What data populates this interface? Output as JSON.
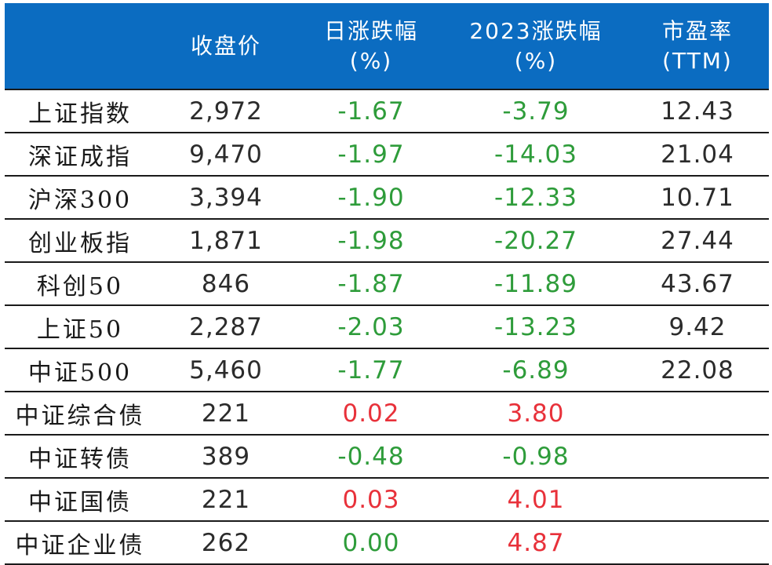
{
  "table": {
    "headers": [
      {
        "line1": "",
        "line2": ""
      },
      {
        "line1": "收盘价",
        "line2": ""
      },
      {
        "line1": "日涨跌幅",
        "line2": "(%)"
      },
      {
        "line1": "2023涨跌幅",
        "line2": "(%)"
      },
      {
        "line1": "市盈率",
        "line2": "(TTM)"
      }
    ],
    "rows": [
      {
        "name": "上证指数",
        "close": "2,972",
        "daily": "-1.67",
        "ytd": "-3.79",
        "pe": "12.43",
        "daily_sign": "neg",
        "ytd_sign": "neg"
      },
      {
        "name": "深证成指",
        "close": "9,470",
        "daily": "-1.97",
        "ytd": "-14.03",
        "pe": "21.04",
        "daily_sign": "neg",
        "ytd_sign": "neg"
      },
      {
        "name": "沪深300",
        "close": "3,394",
        "daily": "-1.90",
        "ytd": "-12.33",
        "pe": "10.71",
        "daily_sign": "neg",
        "ytd_sign": "neg"
      },
      {
        "name": "创业板指",
        "close": "1,871",
        "daily": "-1.98",
        "ytd": "-20.27",
        "pe": "27.44",
        "daily_sign": "neg",
        "ytd_sign": "neg"
      },
      {
        "name": "科创50",
        "close": "846",
        "daily": "-1.87",
        "ytd": "-11.89",
        "pe": "43.67",
        "daily_sign": "neg",
        "ytd_sign": "neg"
      },
      {
        "name": "上证50",
        "close": "2,287",
        "daily": "-2.03",
        "ytd": "-13.23",
        "pe": "9.42",
        "daily_sign": "neg",
        "ytd_sign": "neg"
      },
      {
        "name": "中证500",
        "close": "5,460",
        "daily": "-1.77",
        "ytd": "-6.89",
        "pe": "22.08",
        "daily_sign": "neg",
        "ytd_sign": "neg"
      },
      {
        "name": "中证综合债",
        "close": "221",
        "daily": "0.02",
        "ytd": "3.80",
        "pe": "",
        "daily_sign": "pos",
        "ytd_sign": "pos"
      },
      {
        "name": "中证转债",
        "close": "389",
        "daily": "-0.48",
        "ytd": "-0.98",
        "pe": "",
        "daily_sign": "neg",
        "ytd_sign": "neg"
      },
      {
        "name": "中证国债",
        "close": "221",
        "daily": "0.03",
        "ytd": "4.01",
        "pe": "",
        "daily_sign": "pos",
        "ytd_sign": "pos"
      },
      {
        "name": "中证企业债",
        "close": "262",
        "daily": "0.00",
        "ytd": "4.87",
        "pe": "",
        "daily_sign": "flat",
        "ytd_sign": "pos"
      }
    ]
  },
  "colors": {
    "header_bg": "#0b6cc1",
    "negative": "#2e9c3a",
    "positive": "#e8313a"
  }
}
